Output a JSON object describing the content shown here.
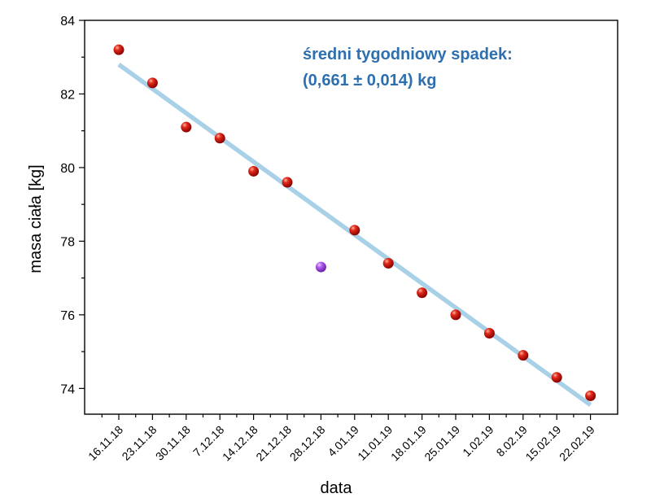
{
  "chart_data": {
    "type": "scatter",
    "xlabel": "data",
    "ylabel": "masa ciała [kg]",
    "ylim": [
      73.3,
      84
    ],
    "yticks": [
      74,
      76,
      78,
      80,
      82,
      84
    ],
    "categories": [
      "16.11.18",
      "23.11.18",
      "30.11.18",
      "7.12.18",
      "14.12.18",
      "21.12.18",
      "28.12.18",
      "4.01.19",
      "11.01.19",
      "18.01.19",
      "25.01.19",
      "1.02.19",
      "8.02.19",
      "15.02.19",
      "22.02.19"
    ],
    "series": [
      {
        "values": [
          83.2,
          82.3,
          81.1,
          80.8,
          79.9,
          79.6,
          null,
          78.3,
          77.4,
          76.6,
          76.0,
          75.5,
          74.9,
          74.3,
          73.8
        ],
        "color": "#cc1111",
        "marker": "sphere"
      },
      {
        "values": [
          null,
          null,
          null,
          null,
          null,
          null,
          77.3,
          null,
          null,
          null,
          null,
          null,
          null,
          null,
          null
        ],
        "color": "#a64ee8",
        "marker": "sphere"
      }
    ],
    "fit_line": {
      "start_value": 82.8,
      "end_value": 73.55,
      "color": "#a8d0e6"
    },
    "annotation": {
      "line1": "średni tygodniowy spadek:",
      "line2": "(0,661 ± 0,014) kg",
      "color": "#2e6fb0"
    },
    "grid": false,
    "legend": false
  }
}
